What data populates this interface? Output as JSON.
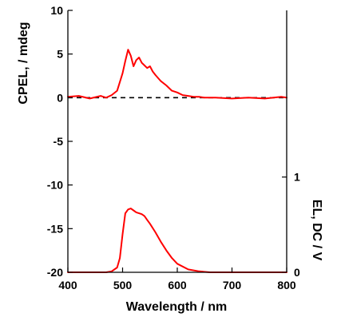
{
  "chart_data": {
    "type": "line",
    "xlabel": "Wavelength / nm",
    "ylabel_left": "CPEL, / mdeg",
    "ylabel_right": "EL, DC / V",
    "xlim": [
      400,
      800
    ],
    "ylim_left": [
      -20,
      10
    ],
    "ylim_right": [
      0,
      2.75
    ],
    "x_ticks": [
      400,
      500,
      600,
      700,
      800
    ],
    "y_left_ticks": [
      10,
      5,
      0,
      -5,
      -10,
      -15,
      -20
    ],
    "y_right_ticks": [
      1,
      0
    ],
    "grid": false,
    "series": [
      {
        "axis": "left",
        "color": "#ff0000",
        "x": [
          400,
          420,
          440,
          460,
          470,
          480,
          490,
          495,
          500,
          505,
          510,
          515,
          520,
          525,
          530,
          535,
          540,
          545,
          550,
          555,
          560,
          570,
          580,
          590,
          600,
          610,
          620,
          630,
          640,
          650,
          670,
          700,
          730,
          760,
          790,
          800
        ],
        "y": [
          0.1,
          0.2,
          -0.1,
          0.2,
          0.0,
          0.3,
          0.8,
          1.8,
          2.8,
          4.2,
          5.5,
          4.8,
          3.6,
          4.3,
          4.6,
          4.0,
          3.7,
          3.4,
          3.6,
          3.0,
          2.6,
          1.9,
          1.4,
          0.8,
          0.6,
          0.3,
          0.2,
          0.1,
          0.1,
          0.0,
          0.0,
          -0.1,
          0.0,
          -0.1,
          0.1,
          0.0
        ]
      },
      {
        "axis": "right",
        "color": "#ff0000",
        "x": [
          400,
          450,
          470,
          480,
          490,
          495,
          500,
          505,
          510,
          515,
          520,
          525,
          530,
          535,
          540,
          545,
          550,
          560,
          570,
          580,
          590,
          600,
          620,
          640,
          660,
          680,
          700,
          750,
          800
        ],
        "y": [
          0,
          0,
          0.0,
          0.01,
          0.05,
          0.15,
          0.4,
          0.62,
          0.66,
          0.67,
          0.65,
          0.63,
          0.62,
          0.61,
          0.59,
          0.55,
          0.51,
          0.42,
          0.32,
          0.23,
          0.15,
          0.09,
          0.03,
          0.01,
          0,
          0,
          0,
          0,
          0
        ]
      }
    ],
    "reference_lines": [
      {
        "axis": "left",
        "y": 0,
        "style": "dashed",
        "color": "#000000"
      }
    ]
  }
}
